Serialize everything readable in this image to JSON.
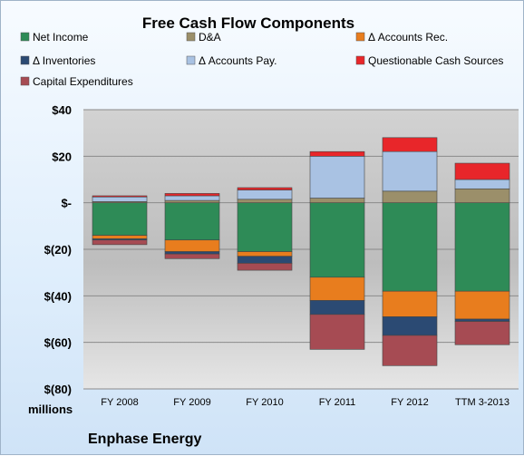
{
  "chart_data": {
    "type": "bar",
    "stacked": true,
    "title": "Free Cash Flow Components",
    "categories": [
      "FY 2008",
      "FY 2009",
      "FY 2010",
      "FY 2011",
      "FY 2012",
      "TTM 3-2013"
    ],
    "y_tick_labels": [
      "$40",
      "$20",
      "$-",
      "$(20)",
      "$(40)",
      "$(60)",
      "$(80)"
    ],
    "y_tick_values": [
      40,
      20,
      0,
      -20,
      -40,
      -60,
      -80
    ],
    "ylim": [
      -80,
      40
    ],
    "units_label": "millions",
    "company": "Enphase Energy",
    "grid": true,
    "legend_position": "top",
    "series": [
      {
        "name": "Net Income",
        "color": "#2e8b57",
        "values": [
          -14,
          -16,
          -21,
          -32,
          -38,
          -38
        ]
      },
      {
        "name": "D&A",
        "color": "#9b8f6a",
        "values": [
          0.5,
          1,
          1.5,
          2,
          5,
          6
        ]
      },
      {
        "name": "Δ Accounts Rec.",
        "color": "#e87d1e",
        "values": [
          -1.5,
          -5,
          -2,
          -10,
          -11,
          -12
        ]
      },
      {
        "name": "Δ Inventories",
        "color": "#2b4a73",
        "values": [
          -0.5,
          -1,
          -3,
          -6,
          -8,
          -1
        ]
      },
      {
        "name": "Δ Accounts Pay.",
        "color": "#a9c2e3",
        "values": [
          2,
          2,
          4,
          18,
          17,
          4
        ]
      },
      {
        "name": "Questionable Cash Sources",
        "color": "#e8262a",
        "values": [
          0.5,
          1,
          1,
          2,
          6,
          7
        ]
      },
      {
        "name": "Capital Expenditures",
        "color": "#a64b53",
        "values": [
          -2,
          -2,
          -3,
          -15,
          -13,
          -10
        ]
      }
    ]
  }
}
